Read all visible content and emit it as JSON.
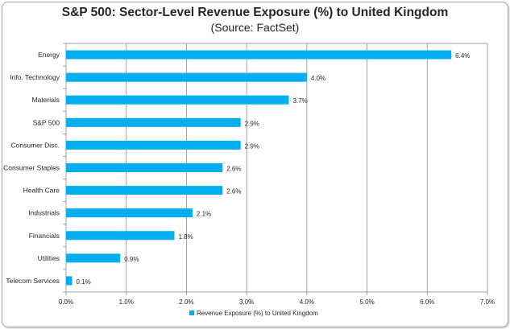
{
  "chart_data": {
    "type": "bar",
    "orientation": "horizontal",
    "title": "S&P 500: Sector-Level Revenue Exposure (%) to United Kingdom",
    "subtitle": "(Source: FactSet)",
    "categories": [
      "Energy",
      "Info. Technology",
      "Materials",
      "S&P 500",
      "Consumer Disc.",
      "Consumer Staples",
      "Health Care",
      "Industrials",
      "Financials",
      "Utilities",
      "Telecom Services"
    ],
    "series": [
      {
        "name": "Revenue Exposure (%) to United Kingdom",
        "values": [
          6.4,
          4.0,
          3.7,
          2.9,
          2.9,
          2.6,
          2.6,
          2.1,
          1.8,
          0.9,
          0.1
        ],
        "data_labels": [
          "6.4%",
          "4.0%",
          "3.7%",
          "2.9%",
          "2.9%",
          "2.6%",
          "2.6%",
          "2.1%",
          "1.8%",
          "0.9%",
          "0.1%"
        ],
        "color": "#00aeef"
      }
    ],
    "xlim": [
      0,
      7
    ],
    "x_ticks": [
      0,
      1,
      2,
      3,
      4,
      5,
      6,
      7
    ],
    "x_tick_labels": [
      "0.0%",
      "1.0%",
      "2.0%",
      "3.0%",
      "4.0%",
      "5.0%",
      "6.0%",
      "7.0%"
    ],
    "xlabel": "",
    "ylabel": "",
    "grid": "vertical",
    "legend_position": "bottom"
  }
}
